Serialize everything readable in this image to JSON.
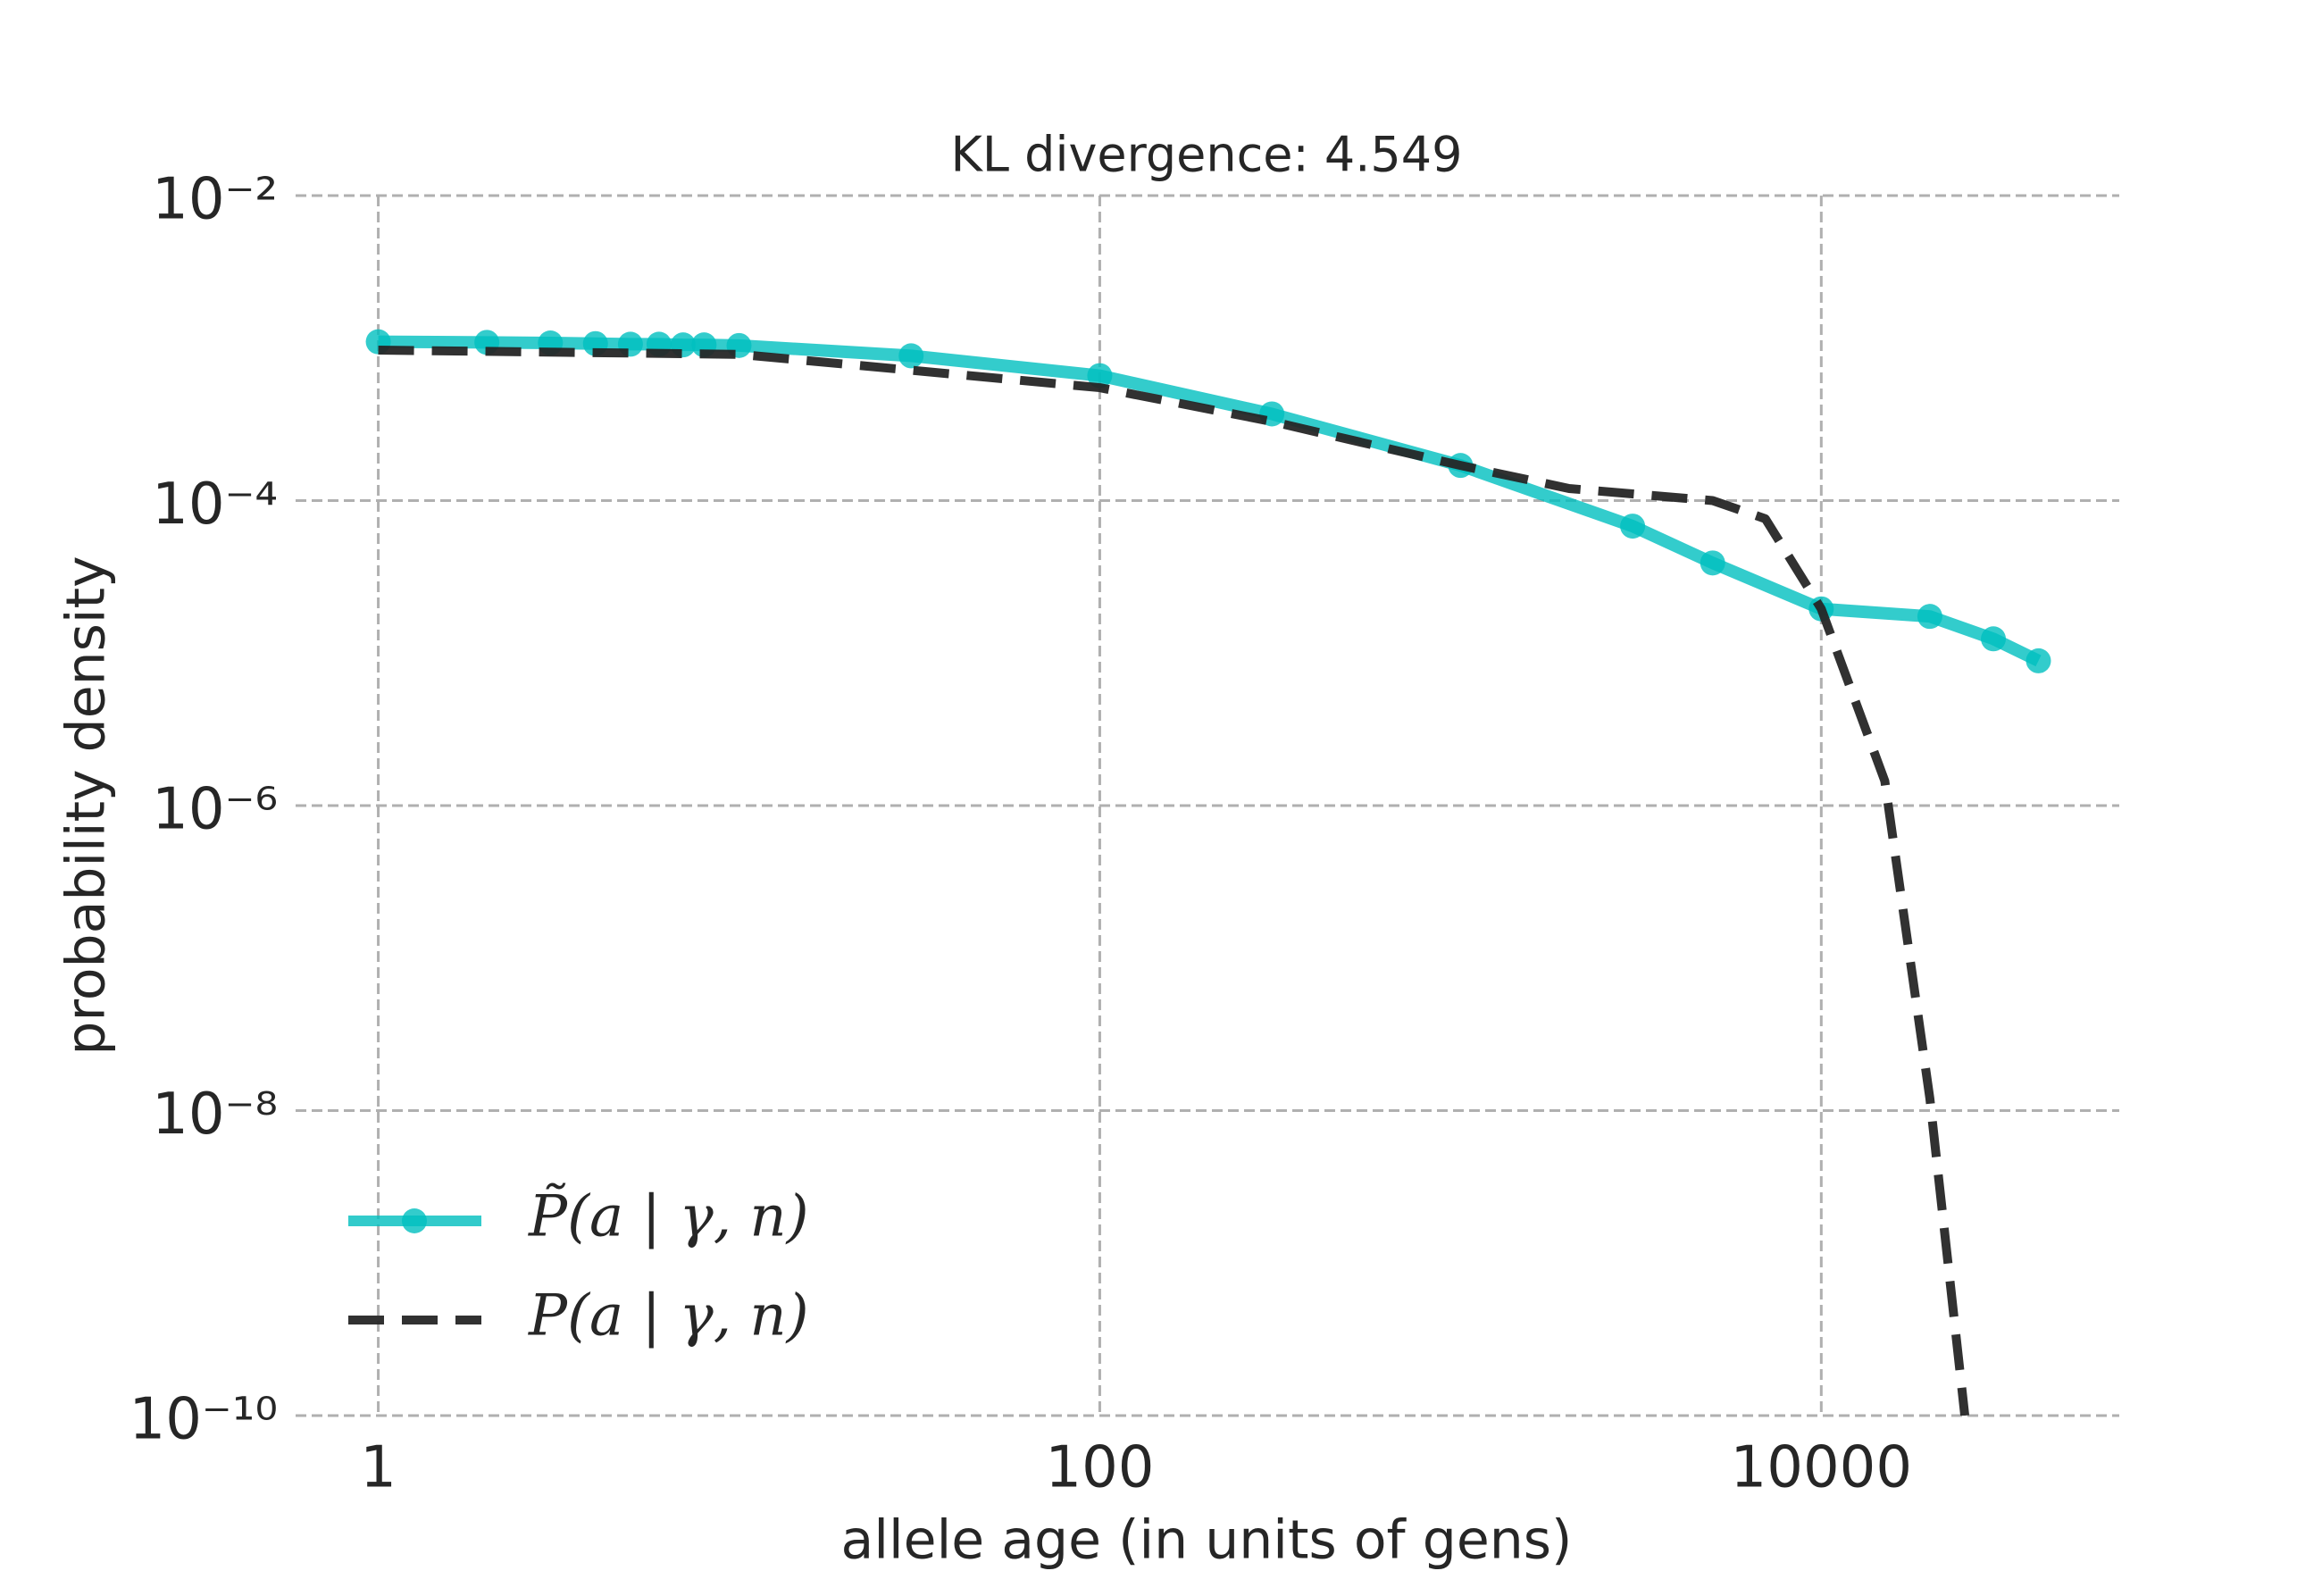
{
  "chart_data": {
    "type": "line",
    "title": "KL divergence: 4.549",
    "x_label": "allele age (in units of gens)",
    "y_label": "probability density",
    "log_x": true,
    "log_y": true,
    "grid": true,
    "legend_position": "lower left",
    "xlim": [
      0.59,
      67000
    ],
    "ylim": [
      1e-10,
      0.01
    ],
    "xticks": [
      1,
      100,
      10000
    ],
    "yticks": [
      {
        "value": 0.01,
        "label": "10⁻²"
      },
      {
        "value": 0.0001,
        "label": "10⁻⁴"
      },
      {
        "value": 1e-06,
        "label": "10⁻⁶"
      },
      {
        "value": 1e-08,
        "label": "10⁻⁸"
      },
      {
        "value": 1e-10,
        "label": "10⁻¹⁰"
      }
    ],
    "series": [
      {
        "name": "P̃(a | γ, n)",
        "color": "#00bfbf",
        "marker": "o",
        "x": [
          1,
          2,
          3,
          4,
          5,
          6,
          7,
          8,
          10,
          30,
          100,
          300,
          1000,
          3000,
          5000,
          10000,
          20000,
          30000,
          40000
        ],
        "values": [
          0.0011,
          0.00109,
          0.00108,
          0.00107,
          0.00106,
          0.00106,
          0.00105,
          0.00105,
          0.00104,
          0.00089,
          0.00066,
          0.00037,
          0.00017,
          6.8e-05,
          3.9e-05,
          1.95e-05,
          1.74e-05,
          1.24e-05,
          8.9e-06
        ]
      },
      {
        "name": "P(a | γ, n)",
        "color": "#262626",
        "dashed": true,
        "x": [
          1,
          10,
          100,
          300,
          1000,
          2000,
          5000,
          7000,
          10000,
          15000,
          20000,
          25000
        ],
        "values": [
          0.00097,
          0.00091,
          0.00055,
          0.00033,
          0.00017,
          0.00012,
          0.0001,
          7.6e-05,
          1.95e-05,
          1.45e-06,
          1.2e-08,
          1e-10
        ]
      }
    ]
  }
}
